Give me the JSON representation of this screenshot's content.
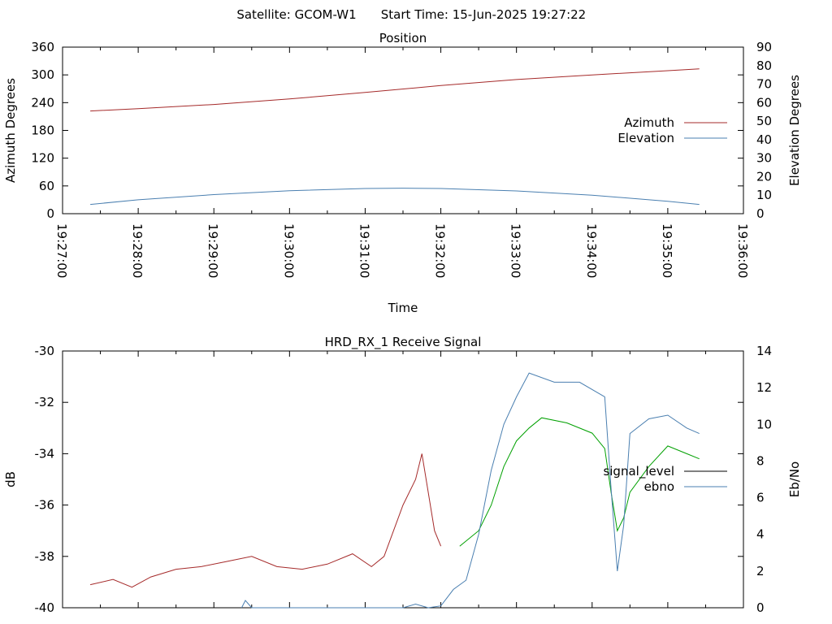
{
  "header": {
    "satellite": "Satellite: GCOM-W1",
    "start_time": "Start Time: 15-Jun-2025 19:27:22"
  },
  "chart_data": [
    {
      "type": "line",
      "title": "Position",
      "xlabel": "Time",
      "ylabel": "Azimuth Degrees",
      "y2label": "Elevation Degrees",
      "x_ticks": [
        "19:27:00",
        "19:28:00",
        "19:29:00",
        "19:30:00",
        "19:31:00",
        "19:32:00",
        "19:33:00",
        "19:34:00",
        "19:35:00",
        "19:36:00"
      ],
      "xlim": [
        "19:27:00",
        "19:36:00"
      ],
      "ylim": [
        0,
        360
      ],
      "y_ticks": [
        "0",
        "60",
        "120",
        "180",
        "240",
        "300",
        "360"
      ],
      "y2lim": [
        0,
        90
      ],
      "y2_ticks": [
        "0",
        "10",
        "20",
        "30",
        "40",
        "50",
        "60",
        "70",
        "80",
        "90"
      ],
      "legend_position": "right",
      "series": [
        {
          "name": "Azimuth",
          "axis": "y",
          "color": "#a52a2a",
          "x": [
            "19:27:22",
            "19:28:00",
            "19:29:00",
            "19:30:00",
            "19:31:00",
            "19:32:00",
            "19:33:00",
            "19:34:00",
            "19:35:00",
            "19:35:25"
          ],
          "values": [
            222,
            227,
            236,
            248,
            262,
            277,
            290,
            300,
            309,
            313
          ]
        },
        {
          "name": "Elevation",
          "axis": "y2",
          "color": "#4a7fb0",
          "x": [
            "19:27:22",
            "19:28:00",
            "19:29:00",
            "19:30:00",
            "19:31:00",
            "19:31:30",
            "19:32:00",
            "19:33:00",
            "19:34:00",
            "19:35:00",
            "19:35:25"
          ],
          "values": [
            5,
            7.5,
            10.3,
            12.4,
            13.6,
            13.8,
            13.6,
            12.3,
            10,
            6.7,
            5
          ]
        }
      ]
    },
    {
      "type": "line",
      "title": "HRD_RX_1 Receive Signal",
      "ylabel": "dB",
      "y2label": "Eb/No",
      "xlim": [
        "19:27:00",
        "19:36:00"
      ],
      "ylim": [
        -40,
        -30
      ],
      "y_ticks": [
        "-40",
        "-38",
        "-36",
        "-34",
        "-32",
        "-30"
      ],
      "y2lim": [
        0,
        14
      ],
      "y2_ticks": [
        "0",
        "2",
        "4",
        "6",
        "8",
        "10",
        "12",
        "14"
      ],
      "legend_position": "right",
      "series": [
        {
          "name": "signal_level",
          "axis": "y",
          "color": "#a52a2a",
          "x": [
            "19:27:22",
            "19:27:40",
            "19:27:55",
            "19:28:10",
            "19:28:30",
            "19:28:50",
            "19:29:10",
            "19:29:30",
            "19:29:50",
            "19:30:10",
            "19:30:30",
            "19:30:50",
            "19:31:05",
            "19:31:15",
            "19:31:30",
            "19:31:40",
            "19:31:45",
            "19:31:55",
            "19:32:00"
          ],
          "values": [
            -39.1,
            -38.9,
            -39.2,
            -38.8,
            -38.5,
            -38.4,
            -38.2,
            -38.0,
            -38.4,
            -38.5,
            -38.3,
            -37.9,
            -38.4,
            -38.0,
            -36.0,
            -35.0,
            -34.0,
            -37.0,
            -37.6
          ]
        },
        {
          "name": "signal_level",
          "axis": "y",
          "color": "#00a000",
          "x": [
            "19:32:15",
            "19:32:30",
            "19:32:40",
            "19:32:50",
            "19:33:00",
            "19:33:10",
            "19:33:20",
            "19:33:40",
            "19:34:00",
            "19:34:10",
            "19:34:15",
            "19:34:20",
            "19:34:25",
            "19:34:30",
            "19:34:45",
            "19:35:00",
            "19:35:15",
            "19:35:25"
          ],
          "values": [
            -37.6,
            -37.0,
            -36.0,
            -34.5,
            -33.5,
            -33.0,
            -32.6,
            -32.8,
            -33.2,
            -33.8,
            -35.5,
            -37.0,
            -36.5,
            -35.5,
            -34.5,
            -33.7,
            -34.0,
            -34.2
          ]
        },
        {
          "name": "ebno",
          "axis": "y2",
          "color": "#4a7fb0",
          "x": [
            "19:29:22",
            "19:29:25",
            "19:29:30",
            "19:31:10",
            "19:31:30",
            "19:31:40",
            "19:31:50",
            "19:32:00",
            "19:32:10",
            "19:32:20",
            "19:32:30",
            "19:32:40",
            "19:32:50",
            "19:33:00",
            "19:33:10",
            "19:33:30",
            "19:33:50",
            "19:34:10",
            "19:34:15",
            "19:34:20",
            "19:34:25",
            "19:34:30",
            "19:34:45",
            "19:35:00",
            "19:35:15",
            "19:35:25"
          ],
          "values": [
            0,
            0.4,
            0,
            0,
            0,
            0.2,
            0,
            0.1,
            1.0,
            1.5,
            4.0,
            7.5,
            10.0,
            11.5,
            12.8,
            12.3,
            12.3,
            11.5,
            6.5,
            2.0,
            4.5,
            9.5,
            10.3,
            10.5,
            9.8,
            9.5
          ]
        }
      ]
    }
  ]
}
